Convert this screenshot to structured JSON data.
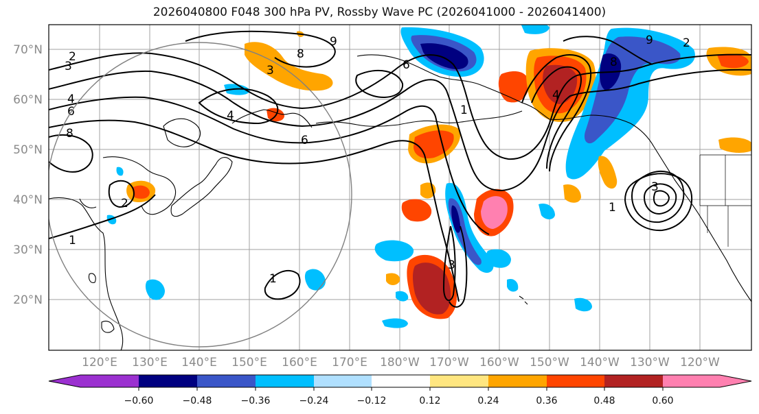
{
  "title": "2026040800 F048 300 hPa PV, Rossby Wave PC (2026041000 - 2026041400)",
  "latitude_labels": [
    "70°N",
    "60°N",
    "50°N",
    "40°N",
    "30°N",
    "20°N"
  ],
  "longitude_labels": [
    "120°E",
    "130°E",
    "140°E",
    "150°E",
    "160°E",
    "170°E",
    "180°W",
    "170°W",
    "160°W",
    "150°W",
    "140°W",
    "130°W",
    "120°W"
  ],
  "colorbar": {
    "tick_labels": [
      "−0.60",
      "−0.48",
      "−0.36",
      "−0.24",
      "−0.12",
      "0.12",
      "0.24",
      "0.36",
      "0.48",
      "0.60"
    ],
    "colors": [
      "#9b30d0",
      "#000080",
      "#3a56c8",
      "#00bfff",
      "#b0e0ff",
      "#ffffff",
      "#ffe680",
      "#ffa500",
      "#ff4500",
      "#b22222",
      "#ff80b0"
    ]
  },
  "contour_labels": [
    "9",
    "8",
    "6",
    "4",
    "3",
    "2",
    "1",
    "6",
    "8",
    "4",
    "3",
    "2",
    "1",
    "3",
    "1",
    "9",
    "8",
    "6",
    "4",
    "3",
    "2",
    "1"
  ],
  "palette": {
    "grid": "#a0a0a0",
    "contour": "#000000",
    "coast": "#000000",
    "circle": "#808080"
  }
}
